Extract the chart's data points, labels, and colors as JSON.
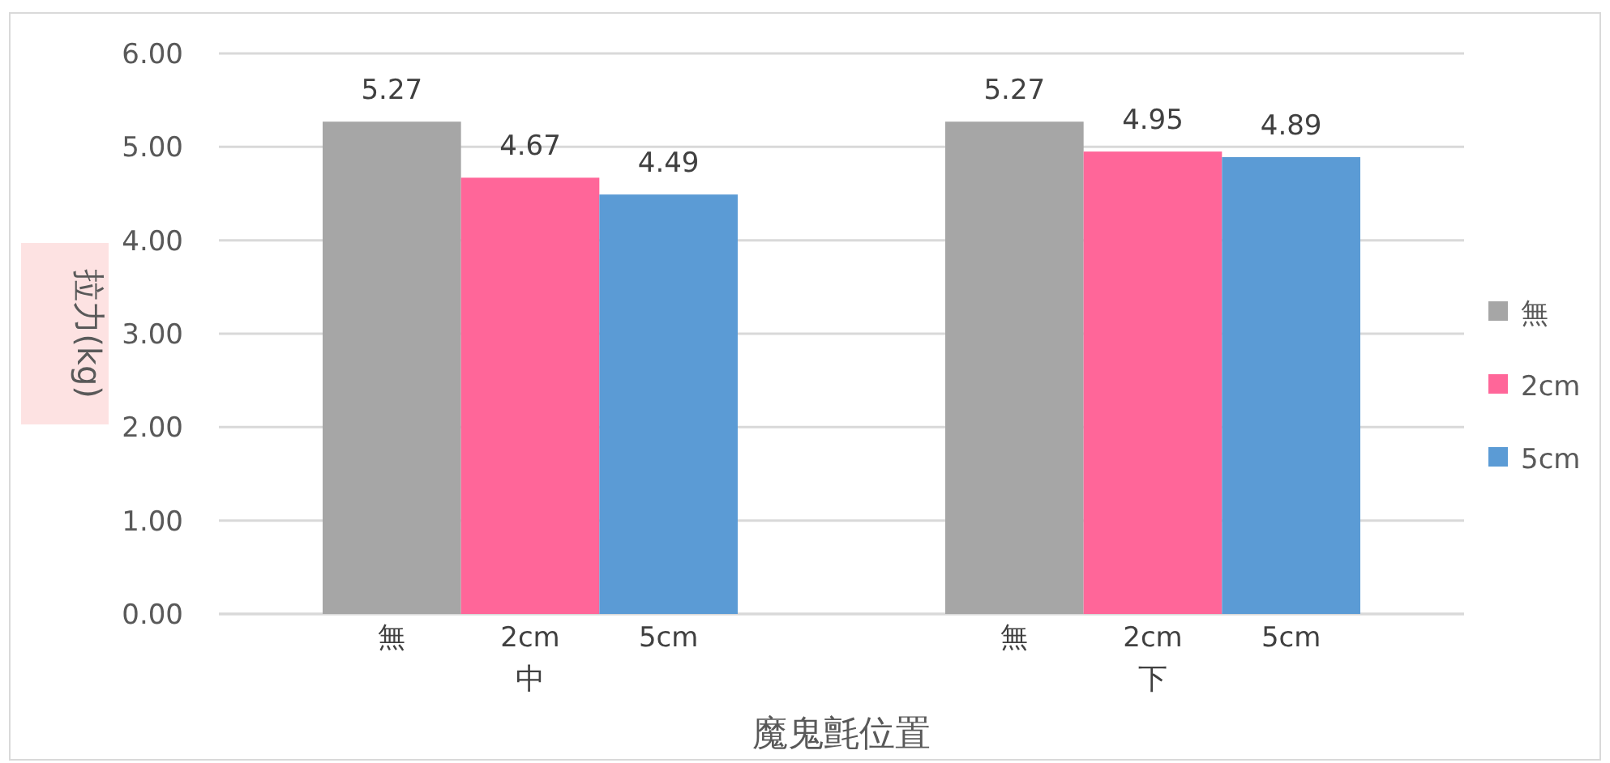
{
  "chart_data": {
    "type": "bar",
    "xlabel": "魔鬼氈位置",
    "ylabel": "拉力(kg)",
    "categories": [
      "中",
      "下"
    ],
    "series": [
      {
        "name": "無",
        "color": "#a6a6a6",
        "values": [
          5.27,
          5.27
        ]
      },
      {
        "name": "2cm",
        "color": "#ff6699",
        "values": [
          4.67,
          4.95
        ]
      },
      {
        "name": "5cm",
        "color": "#5b9bd5",
        "values": [
          4.49,
          4.89
        ]
      }
    ],
    "ylim": [
      0,
      6
    ],
    "yticks": [
      {
        "value": 0,
        "label": "0.00"
      },
      {
        "value": 1,
        "label": "1.00"
      },
      {
        "value": 2,
        "label": "2.00"
      },
      {
        "value": 3,
        "label": "3.00"
      },
      {
        "value": 4,
        "label": "4.00"
      },
      {
        "value": 5,
        "label": "5.00"
      },
      {
        "value": 6,
        "label": "6.00"
      }
    ],
    "grid": "y",
    "legend": "right",
    "data_labels": true
  }
}
